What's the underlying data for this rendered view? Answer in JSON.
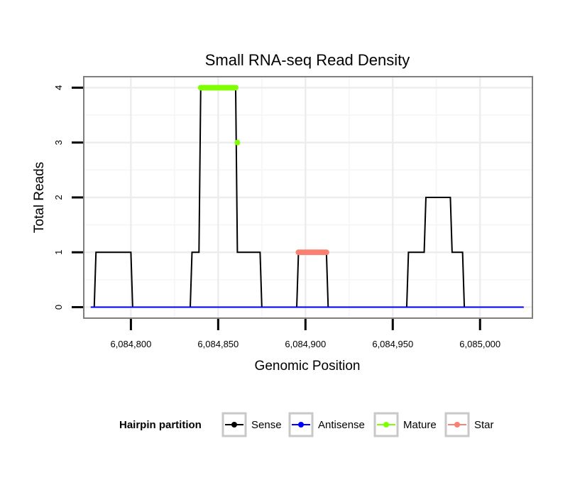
{
  "chart_data": {
    "type": "line",
    "title": "Small RNA-seq Read Density",
    "xlabel": "Genomic Position",
    "ylabel": "Total Reads",
    "xlim": [
      6084773,
      6085030
    ],
    "ylim": [
      -0.2,
      4.2
    ],
    "x_ticks": [
      6084800,
      6084850,
      6084900,
      6084950,
      6085000
    ],
    "x_tick_labels": [
      "6,084,800",
      "6,084,850",
      "6,084,900",
      "6,084,950",
      "6,085,000"
    ],
    "y_ticks": [
      0,
      1,
      2,
      3,
      4
    ],
    "y_tick_labels": [
      "0",
      "1",
      "2",
      "3",
      "4"
    ],
    "grid": true,
    "legend": {
      "title": "Hairpin partition",
      "position": "bottom",
      "entries": [
        "Sense",
        "Antisense",
        "Mature",
        "Star"
      ]
    },
    "series": [
      {
        "name": "Sense",
        "color": "#000000",
        "mode": "line",
        "x": [
          6084777,
          6084779,
          6084780,
          6084800,
          6084801,
          6084834,
          6084835,
          6084839,
          6084840,
          6084860,
          6084861,
          6084874,
          6084875,
          6084895,
          6084896,
          6084912,
          6084913,
          6084958,
          6084959,
          6084968,
          6084969,
          6084983,
          6084984,
          6084990,
          6084991,
          6085025
        ],
        "y": [
          0,
          0,
          1,
          1,
          0,
          0,
          1,
          1,
          4,
          4,
          1,
          1,
          0,
          0,
          1,
          1,
          0,
          0,
          1,
          1,
          2,
          2,
          1,
          1,
          0,
          0
        ]
      },
      {
        "name": "Antisense",
        "color": "#0000ff",
        "mode": "line",
        "x": [
          6084777,
          6085025
        ],
        "y": [
          0,
          0
        ]
      },
      {
        "name": "Mature",
        "color": "#7fff00",
        "mode": "points",
        "x": [
          6084840,
          6084841,
          6084842,
          6084843,
          6084844,
          6084845,
          6084846,
          6084847,
          6084848,
          6084849,
          6084850,
          6084851,
          6084852,
          6084853,
          6084854,
          6084855,
          6084856,
          6084857,
          6084858,
          6084859,
          6084860,
          6084861
        ],
        "y": [
          4,
          4,
          4,
          4,
          4,
          4,
          4,
          4,
          4,
          4,
          4,
          4,
          4,
          4,
          4,
          4,
          4,
          4,
          4,
          4,
          4,
          3
        ]
      },
      {
        "name": "Star",
        "color": "#fa8072",
        "mode": "points",
        "x": [
          6084896,
          6084897,
          6084898,
          6084899,
          6084900,
          6084901,
          6084902,
          6084903,
          6084904,
          6084905,
          6084906,
          6084907,
          6084908,
          6084909,
          6084910,
          6084911,
          6084912
        ],
        "y": [
          1,
          1,
          1,
          1,
          1,
          1,
          1,
          1,
          1,
          1,
          1,
          1,
          1,
          1,
          1,
          1,
          1
        ]
      }
    ]
  }
}
